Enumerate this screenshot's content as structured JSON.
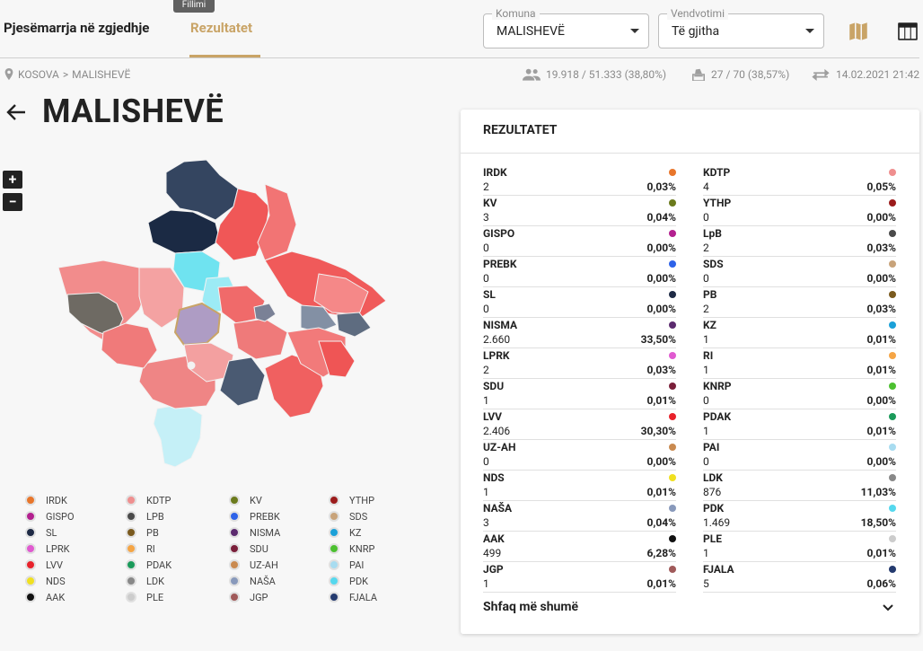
{
  "header": {
    "tooltip": "Fillimi",
    "tab_turnout": "Pjesëmarrja në zgjedhje",
    "tab_results": "Rezultatet",
    "municipality": {
      "label": "Komuna",
      "value": "MALISHEVË"
    },
    "polling": {
      "label": "Vendvotimi",
      "value": "Të gjitha"
    },
    "icons": [
      "map-icon",
      "table-icon"
    ]
  },
  "breadcrumb": {
    "country": "KOSOVA",
    "separator": ">",
    "municipality": "MALISHEVË"
  },
  "stats": {
    "voters": "19.918 / 51.333 (38,80%)",
    "stations": "27 / 70 (38,57%)",
    "updated": "14.02.2021 21:42"
  },
  "page_title": "MALISHEVË",
  "zoom": {
    "in": "+",
    "out": "−"
  },
  "legend": [
    {
      "name": "IRDK",
      "color": "#e8762b"
    },
    {
      "name": "KDTP",
      "color": "#ef8f8f"
    },
    {
      "name": "KV",
      "color": "#6b7a1c"
    },
    {
      "name": "YTHP",
      "color": "#9b1b1b"
    },
    {
      "name": "GISPO",
      "color": "#b3208f"
    },
    {
      "name": "LPB",
      "color": "#4a4a4a"
    },
    {
      "name": "PREBK",
      "color": "#2d62e8"
    },
    {
      "name": "SDS",
      "color": "#c8a37a"
    },
    {
      "name": "SL",
      "color": "#1e2a45"
    },
    {
      "name": "PB",
      "color": "#7a5a1e"
    },
    {
      "name": "NISMA",
      "color": "#5b2a6e"
    },
    {
      "name": "KZ",
      "color": "#1aa0d8"
    },
    {
      "name": "LPRK",
      "color": "#e05ad0"
    },
    {
      "name": "RI",
      "color": "#f5a545"
    },
    {
      "name": "SDU",
      "color": "#7a1f3a"
    },
    {
      "name": "KNRP",
      "color": "#4cc030"
    },
    {
      "name": "LVV",
      "color": "#e8222b"
    },
    {
      "name": "PDAK",
      "color": "#1a9a5a"
    },
    {
      "name": "UZ-AH",
      "color": "#c98a50"
    },
    {
      "name": "PAI",
      "color": "#a8dcf0"
    },
    {
      "name": "NDS",
      "color": "#f0e020"
    },
    {
      "name": "LDK",
      "color": "#888888"
    },
    {
      "name": "NAŠA",
      "color": "#8899bb"
    },
    {
      "name": "PDK",
      "color": "#55d8ee"
    },
    {
      "name": "AAK",
      "color": "#111111"
    },
    {
      "name": "PLE",
      "color": "#cccccc"
    },
    {
      "name": "JGP",
      "color": "#a05a5a"
    },
    {
      "name": "FJALA",
      "color": "#243a6e"
    }
  ],
  "results": {
    "title": "REZULTATET",
    "left": [
      {
        "name": "IRDK",
        "votes": "2",
        "pct": "0,03%",
        "color": "#e8762b"
      },
      {
        "name": "KV",
        "votes": "3",
        "pct": "0,04%",
        "color": "#6b7a1c"
      },
      {
        "name": "GISPO",
        "votes": "0",
        "pct": "0,00%",
        "color": "#b3208f"
      },
      {
        "name": "PREBK",
        "votes": "0",
        "pct": "0,00%",
        "color": "#2d62e8"
      },
      {
        "name": "SL",
        "votes": "0",
        "pct": "0,00%",
        "color": "#1e2a45"
      },
      {
        "name": "NISMA",
        "votes": "2.660",
        "pct": "33,50%",
        "color": "#5b2a6e"
      },
      {
        "name": "LPRK",
        "votes": "2",
        "pct": "0,03%",
        "color": "#e05ad0"
      },
      {
        "name": "SDU",
        "votes": "1",
        "pct": "0,01%",
        "color": "#7a1f3a"
      },
      {
        "name": "LVV",
        "votes": "2.406",
        "pct": "30,30%",
        "color": "#e8222b"
      },
      {
        "name": "UZ-AH",
        "votes": "0",
        "pct": "0,00%",
        "color": "#c98a50"
      },
      {
        "name": "NDS",
        "votes": "1",
        "pct": "0,01%",
        "color": "#f0e020"
      },
      {
        "name": "NAŠA",
        "votes": "3",
        "pct": "0,04%",
        "color": "#8899bb"
      },
      {
        "name": "AAK",
        "votes": "499",
        "pct": "6,28%",
        "color": "#111111"
      },
      {
        "name": "JGP",
        "votes": "1",
        "pct": "0,01%",
        "color": "#a05a5a"
      }
    ],
    "right": [
      {
        "name": "KDTP",
        "votes": "4",
        "pct": "0,05%",
        "color": "#ef8f8f"
      },
      {
        "name": "YTHP",
        "votes": "0",
        "pct": "0,00%",
        "color": "#9b1b1b"
      },
      {
        "name": "LpB",
        "votes": "2",
        "pct": "0,03%",
        "color": "#4a4a4a"
      },
      {
        "name": "SDS",
        "votes": "0",
        "pct": "0,00%",
        "color": "#c8a37a"
      },
      {
        "name": "PB",
        "votes": "2",
        "pct": "0,03%",
        "color": "#7a5a1e"
      },
      {
        "name": "KZ",
        "votes": "1",
        "pct": "0,01%",
        "color": "#1aa0d8"
      },
      {
        "name": "RI",
        "votes": "1",
        "pct": "0,01%",
        "color": "#f5a545"
      },
      {
        "name": "KNRP",
        "votes": "0",
        "pct": "0,00%",
        "color": "#4cc030"
      },
      {
        "name": "PDAK",
        "votes": "1",
        "pct": "0,01%",
        "color": "#1a9a5a"
      },
      {
        "name": "PAI",
        "votes": "0",
        "pct": "0,00%",
        "color": "#a8dcf0"
      },
      {
        "name": "LDK",
        "votes": "876",
        "pct": "11,03%",
        "color": "#888888"
      },
      {
        "name": "PDK",
        "votes": "1.469",
        "pct": "18,50%",
        "color": "#55d8ee"
      },
      {
        "name": "PLE",
        "votes": "1",
        "pct": "0,01%",
        "color": "#cccccc"
      },
      {
        "name": "FJALA",
        "votes": "5",
        "pct": "0,06%",
        "color": "#243a6e"
      }
    ],
    "show_more": "Shfaq më shumë"
  }
}
